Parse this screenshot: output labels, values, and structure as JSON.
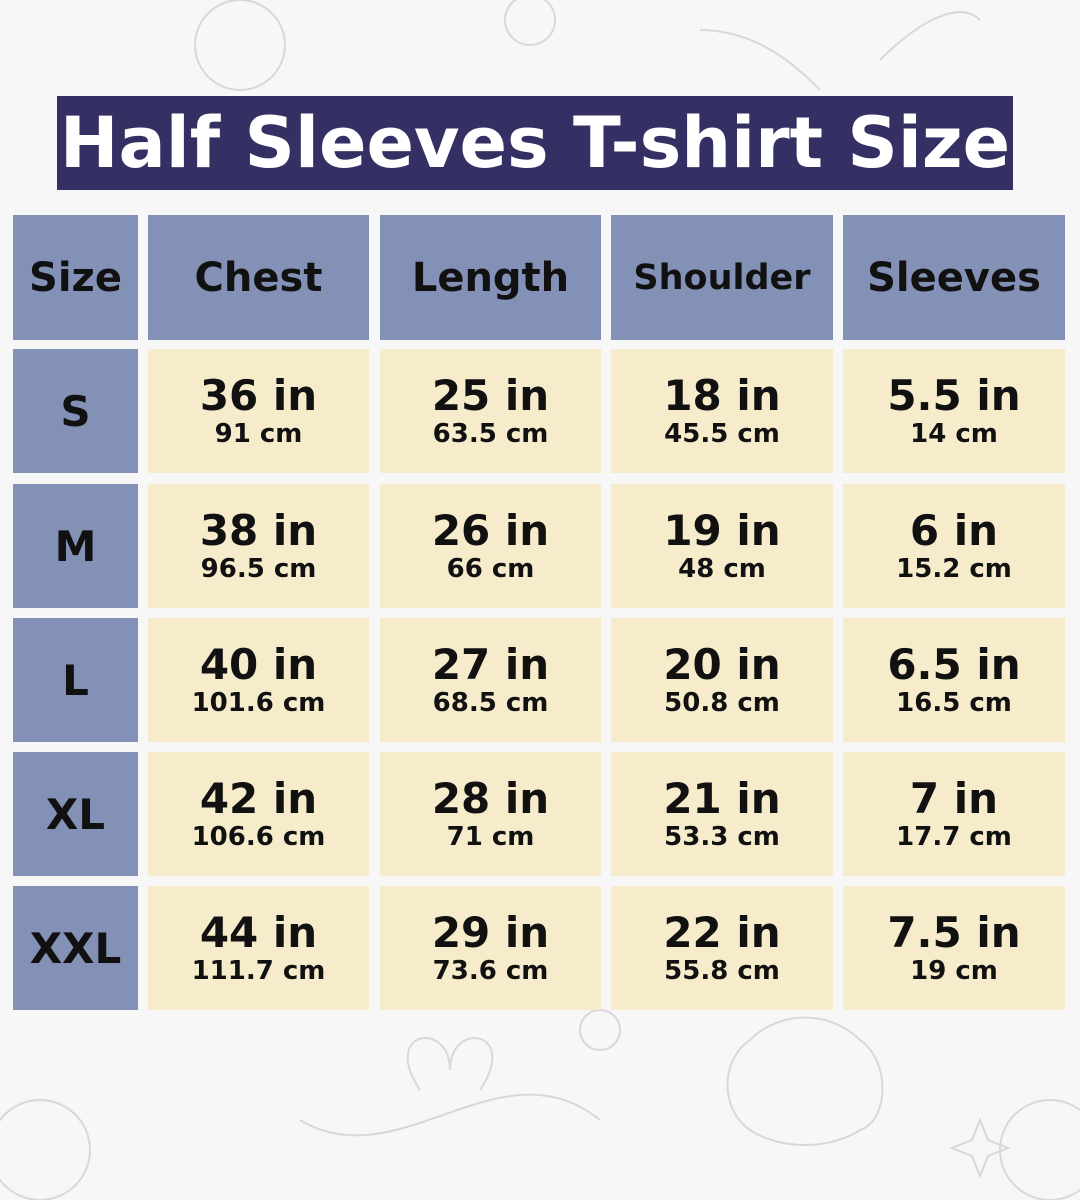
{
  "title": "Half Sleeves T-shirt Size",
  "colors": {
    "title_bg": "#353063",
    "header_bg": "#8391b6",
    "cell_bg": "#f6ebcb"
  },
  "headers": [
    "Size",
    "Chest",
    "Length",
    "Shoulder",
    "Sleeves"
  ],
  "rows": [
    {
      "size": "S",
      "values": [
        {
          "in": "36 in",
          "cm": "91 cm"
        },
        {
          "in": "25 in",
          "cm": "63.5 cm"
        },
        {
          "in": "18 in",
          "cm": "45.5 cm"
        },
        {
          "in": "5.5 in",
          "cm": "14 cm"
        }
      ]
    },
    {
      "size": "M",
      "values": [
        {
          "in": "38 in",
          "cm": "96.5 cm"
        },
        {
          "in": "26 in",
          "cm": "66 cm"
        },
        {
          "in": "19 in",
          "cm": "48 cm"
        },
        {
          "in": "6 in",
          "cm": "15.2 cm"
        }
      ]
    },
    {
      "size": "L",
      "values": [
        {
          "in": "40 in",
          "cm": "101.6 cm"
        },
        {
          "in": "27 in",
          "cm": "68.5 cm"
        },
        {
          "in": "20 in",
          "cm": "50.8 cm"
        },
        {
          "in": "6.5 in",
          "cm": "16.5 cm"
        }
      ]
    },
    {
      "size": "XL",
      "values": [
        {
          "in": "42 in",
          "cm": "106.6 cm"
        },
        {
          "in": "28 in",
          "cm": "71 cm"
        },
        {
          "in": "21 in",
          "cm": "53.3 cm"
        },
        {
          "in": "7 in",
          "cm": "17.7 cm"
        }
      ]
    },
    {
      "size": "XXL",
      "values": [
        {
          "in": "44 in",
          "cm": "111.7 cm"
        },
        {
          "in": "29 in",
          "cm": "73.6 cm"
        },
        {
          "in": "22 in",
          "cm": "55.8 cm"
        },
        {
          "in": "7.5 in",
          "cm": "19 cm"
        }
      ]
    }
  ]
}
